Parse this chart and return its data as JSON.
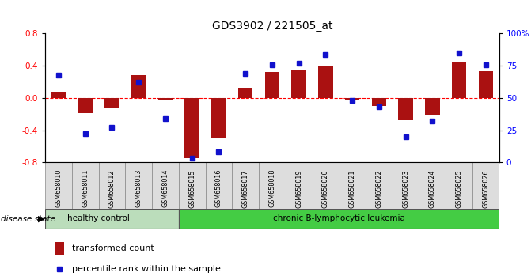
{
  "title": "GDS3902 / 221505_at",
  "samples": [
    "GSM658010",
    "GSM658011",
    "GSM658012",
    "GSM658013",
    "GSM658014",
    "GSM658015",
    "GSM658016",
    "GSM658017",
    "GSM658018",
    "GSM658019",
    "GSM658020",
    "GSM658021",
    "GSM658022",
    "GSM658023",
    "GSM658024",
    "GSM658025",
    "GSM658026"
  ],
  "bar_values": [
    0.08,
    -0.19,
    -0.12,
    0.28,
    -0.02,
    -0.75,
    -0.5,
    0.13,
    0.32,
    0.35,
    0.4,
    -0.02,
    -0.1,
    -0.28,
    -0.22,
    0.44,
    0.33
  ],
  "percentile_values": [
    68,
    22,
    27,
    62,
    34,
    3,
    8,
    69,
    76,
    77,
    84,
    48,
    43,
    20,
    32,
    85,
    76
  ],
  "healthy_count": 5,
  "bar_color": "#aa1111",
  "marker_color": "#1111cc",
  "healthy_color": "#bbddbb",
  "leukemia_color": "#44cc44",
  "label_bar": "transformed count",
  "label_marker": "percentile rank within the sample",
  "left_ylim": [
    -0.8,
    0.8
  ],
  "right_ylim": [
    0,
    100
  ],
  "left_yticks": [
    -0.8,
    -0.4,
    0.0,
    0.4,
    0.8
  ],
  "right_yticks": [
    0,
    25,
    50,
    75,
    100
  ],
  "right_yticklabels": [
    "0",
    "25",
    "50",
    "75",
    "100%"
  ],
  "disease_state_label": "disease state",
  "healthy_label": "healthy control",
  "leukemia_label": "chronic B-lymphocytic leukemia"
}
